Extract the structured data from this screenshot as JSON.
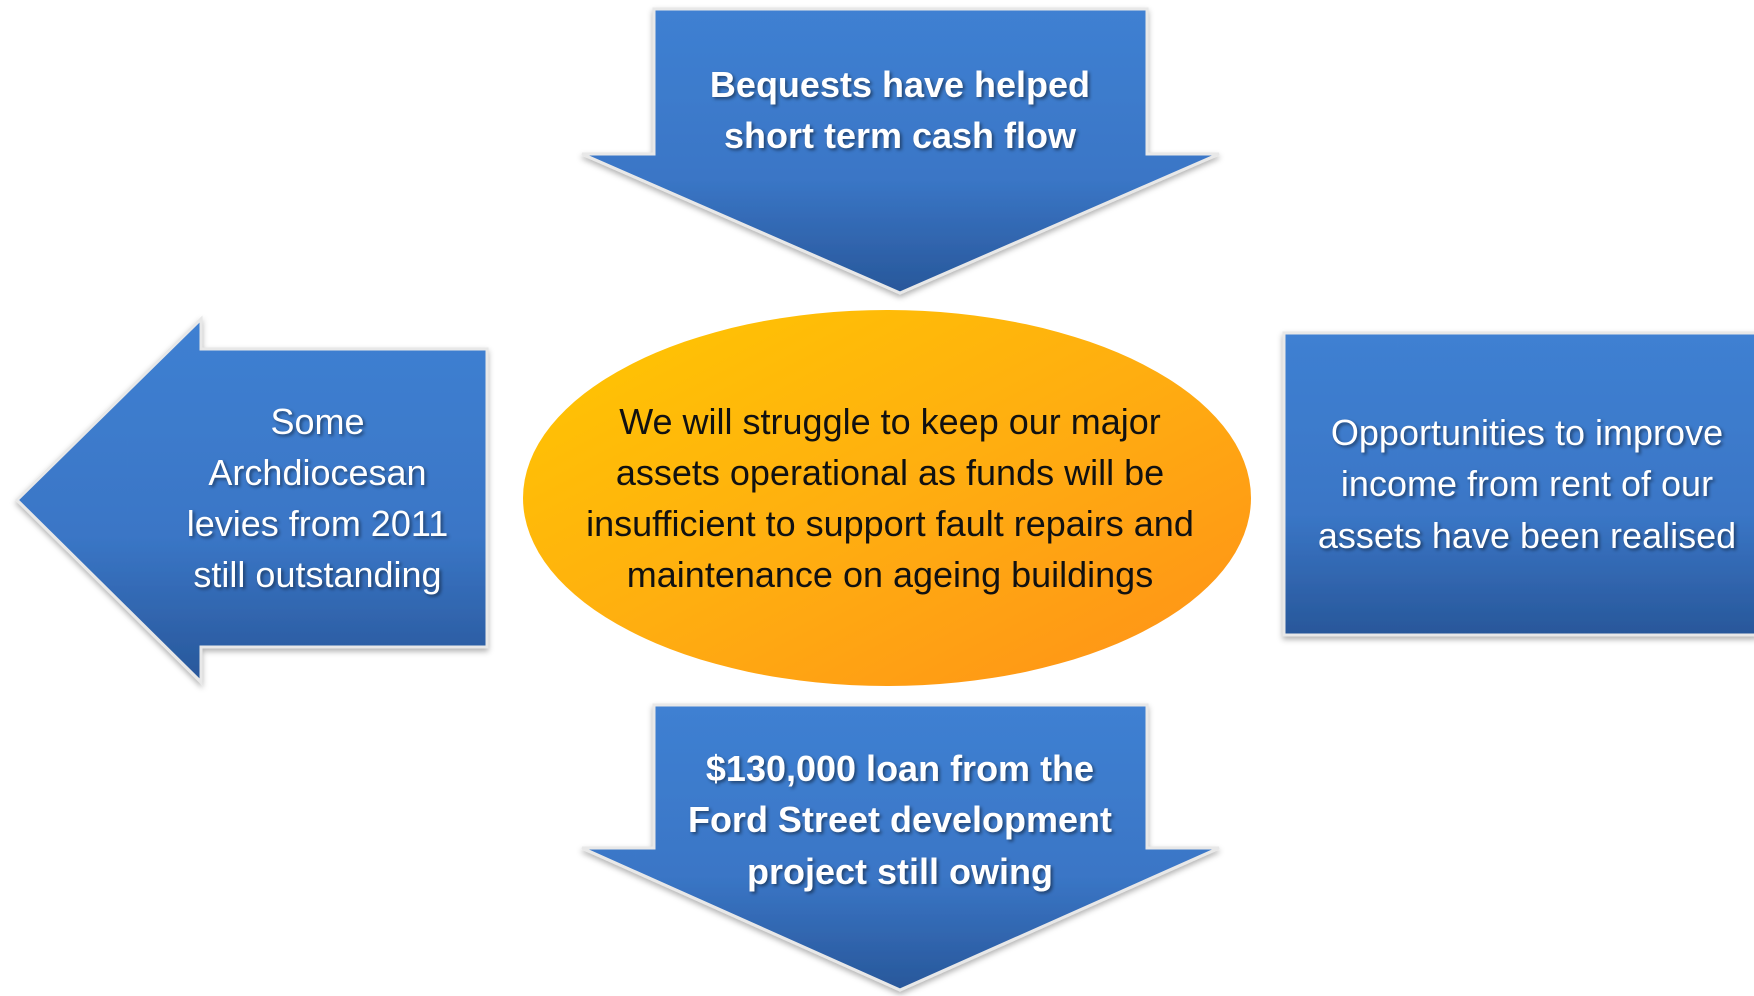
{
  "nodes": [
    {
      "label": "Bequests have helped short term cash flow"
    },
    {
      "label": "Some Archdiocesan levies from 2011 still outstanding"
    },
    {
      "label": "We will struggle to keep our major assets operational as funds will be insufficient to support fault repairs and maintenance on ageing buildings"
    },
    {
      "label": "Opportunities to improve income from rent of our assets have been realised"
    },
    {
      "label": "$130,000 loan from the Ford Street development project still owing"
    }
  ]
}
